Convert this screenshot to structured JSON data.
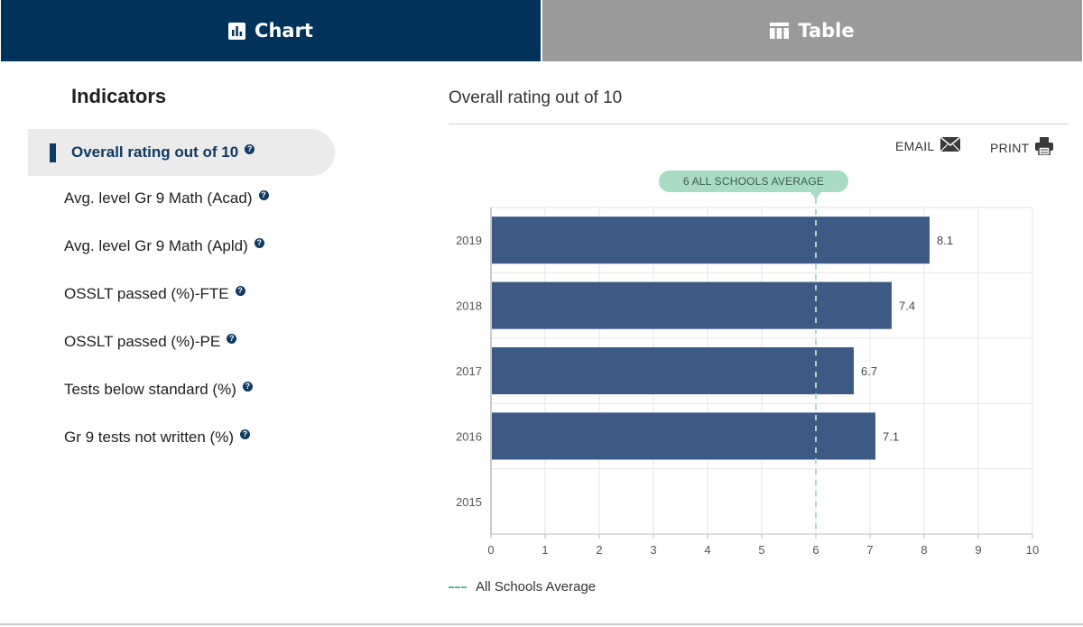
{
  "tabs": [
    {
      "label": "Chart",
      "icon": "bar-chart-icon"
    },
    {
      "label": "Table",
      "icon": "table-icon"
    }
  ],
  "sidebar": {
    "title": "Indicators",
    "items": [
      {
        "label": "Overall rating out of 10",
        "active": true
      },
      {
        "label": "Avg. level Gr 9 Math (Acad)"
      },
      {
        "label": "Avg. level Gr 9 Math (Apld)"
      },
      {
        "label": "OSSLT passed (%)-FTE"
      },
      {
        "label": "OSSLT passed (%)-PE"
      },
      {
        "label": "Tests below standard (%)"
      },
      {
        "label": "Gr 9 tests not written (%)"
      }
    ]
  },
  "actions": {
    "email": "EMAIL",
    "print": "PRINT"
  },
  "chart_data": {
    "type": "bar",
    "orientation": "horizontal",
    "title": "Overall rating out of 10",
    "categories": [
      "2019",
      "2018",
      "2017",
      "2016",
      "2015"
    ],
    "values": [
      8.1,
      7.4,
      6.7,
      7.1,
      null
    ],
    "value_labels": [
      "8.1",
      "7.4",
      "6.7",
      "7.1",
      ""
    ],
    "xlim": [
      0,
      10
    ],
    "x_ticks": [
      "0",
      "1",
      "2",
      "3",
      "4",
      "5",
      "6",
      "7",
      "8",
      "9",
      "10"
    ],
    "grid": true,
    "bar_color": "#3c5a84",
    "reference_line": {
      "value": 6,
      "label": "6 ALL SCHOOLS AVERAGE",
      "color": "#a9dcc3"
    },
    "legend": {
      "label": "All Schools Average",
      "position": "bottom-left"
    }
  }
}
